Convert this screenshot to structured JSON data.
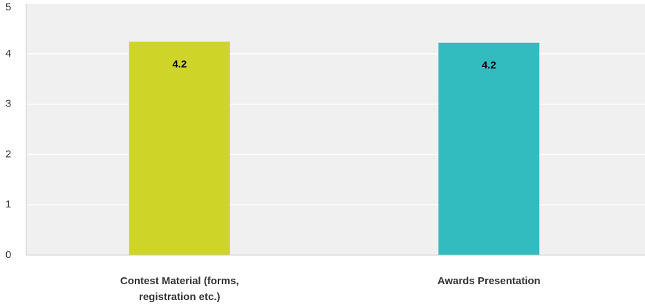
{
  "chart_data": {
    "type": "bar",
    "categories": [
      "Contest Material (forms, registration etc.)",
      "Awards Presentation"
    ],
    "category_lines": [
      [
        "Contest Material (forms,",
        "registration etc.)"
      ],
      [
        "Awards Presentation"
      ]
    ],
    "values": [
      4.24,
      4.22
    ],
    "data_labels": [
      "4.2",
      "4.2"
    ],
    "y_ticks": [
      "0",
      "1",
      "2",
      "3",
      "4",
      "5"
    ],
    "ylim": [
      0,
      5
    ],
    "title": "",
    "xlabel": "",
    "ylabel": "",
    "grid": true,
    "colors": {
      "bars": [
        "#cfd528",
        "#33bcbf"
      ],
      "plot_background": "#f0f0f0",
      "gridline": "#ffffff",
      "axis": "#cccccc",
      "tick_label": "#333333",
      "data_label": "#000000"
    }
  }
}
